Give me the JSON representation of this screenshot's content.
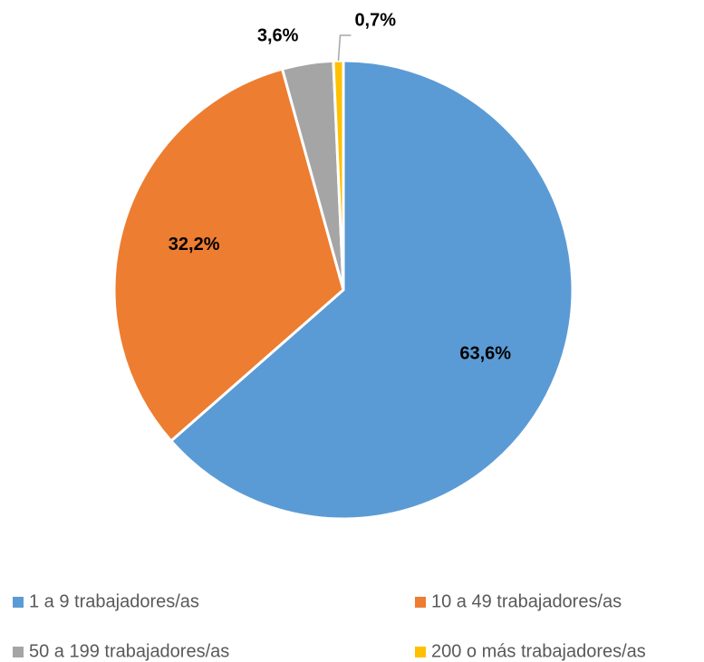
{
  "chart_data": {
    "type": "pie",
    "categories": [
      "1 a 9 trabajadores/as",
      "10 a 49 trabajadores/as",
      "50 a 199 trabajadores/as",
      "200 o más trabajadores/as"
    ],
    "values": [
      63.6,
      32.2,
      3.6,
      0.7
    ],
    "value_labels": [
      "63,6%",
      "32,2%",
      "3,6%",
      "0,7%"
    ],
    "colors": [
      "#5b9bd5",
      "#ed7d31",
      "#a5a5a5",
      "#ffc000"
    ],
    "legend": "bottom"
  }
}
